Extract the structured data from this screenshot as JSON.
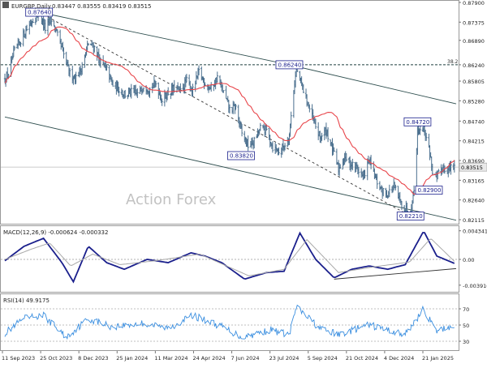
{
  "header": {
    "symbol": "EURGBP,Daily",
    "ohlc": "0.83447 0.83555 0.83419 0.83515"
  },
  "watermark": "Action Forex",
  "colors": {
    "bar": "#4a6f8e",
    "ma": "#e8454a",
    "macd": "#1a1f8c",
    "macd_signal": "#a9a9a9",
    "rsi": "#3b8fe0",
    "channel": "#2f4f4f",
    "fib": "#1e3f3f",
    "label_border": "#1a1f8c",
    "price_highlight": "#e9e9e9"
  },
  "chart_data": [
    {
      "type": "ohlc",
      "panel": "price",
      "title": "EURGBP,Daily",
      "ylim": [
        0.8205,
        0.879
      ],
      "y_ticks": [
        "0.87900",
        "0.87375",
        "0.86890",
        "0.86240",
        "0.85805",
        "0.85280",
        "0.84740",
        "0.84215",
        "0.83690",
        "0.83165",
        "0.82640",
        "0.82115"
      ],
      "current_price": "0.83515",
      "fib_level": {
        "label": "38.2",
        "value": "0.86240"
      },
      "annotations": [
        {
          "text": "0.87640",
          "x": "2023-10-20",
          "y": 0.8764
        },
        {
          "text": "0.86240",
          "x": "2024-07-31",
          "y": 0.8624
        },
        {
          "text": "0.83820",
          "x": "2024-06-06",
          "y": 0.8382
        },
        {
          "text": "0.84720",
          "x": "2024-12-24",
          "y": 0.8472
        },
        {
          "text": "0.82900",
          "x": "2025-01-06",
          "y": 0.829
        },
        {
          "text": "0.82210",
          "x": "2024-12-16",
          "y": 0.8221
        }
      ],
      "channel_lines": [
        {
          "name": "upper",
          "points": [
            [
              "2023-10-20",
              0.8764
            ],
            [
              "2024-07-31",
              0.8624
            ],
            [
              "2025-02-06",
              0.852
            ]
          ]
        },
        {
          "name": "lower",
          "points": [
            [
              "2023-09-11",
              0.8485
            ],
            [
              "2025-02-06",
              0.821
            ]
          ]
        }
      ],
      "dashed_trendline": [
        [
          "2023-10-20",
          0.8764
        ],
        [
          "2024-12-16",
          0.8221
        ]
      ],
      "series": [
        {
          "kind": "price",
          "points": [
            [
              "2023-09-11",
              0.8585
            ],
            [
              "2023-09-15",
              0.86
            ],
            [
              "2023-09-22",
              0.866
            ],
            [
              "2023-09-29",
              0.869
            ],
            [
              "2023-10-06",
              0.872
            ],
            [
              "2023-10-13",
              0.8745
            ],
            [
              "2023-10-20",
              0.876
            ],
            [
              "2023-10-27",
              0.872
            ],
            [
              "2023-11-03",
              0.8745
            ],
            [
              "2023-11-10",
              0.87
            ],
            [
              "2023-11-17",
              0.865
            ],
            [
              "2023-11-24",
              0.86
            ],
            [
              "2023-12-01",
              0.859
            ],
            [
              "2023-12-08",
              0.862
            ],
            [
              "2023-12-15",
              0.868
            ],
            [
              "2023-12-22",
              0.867
            ],
            [
              "2023-12-29",
              0.863
            ],
            [
              "2024-01-05",
              0.861
            ],
            [
              "2024-01-12",
              0.857
            ],
            [
              "2024-01-19",
              0.856
            ],
            [
              "2024-01-26",
              0.8545
            ],
            [
              "2024-02-02",
              0.855
            ],
            [
              "2024-02-09",
              0.8545
            ],
            [
              "2024-02-16",
              0.857
            ],
            [
              "2024-02-23",
              0.856
            ],
            [
              "2024-03-01",
              0.8575
            ],
            [
              "2024-03-08",
              0.853
            ],
            [
              "2024-03-15",
              0.855
            ],
            [
              "2024-03-22",
              0.856
            ],
            [
              "2024-03-29",
              0.8555
            ],
            [
              "2024-04-05",
              0.858
            ],
            [
              "2024-04-12",
              0.8555
            ],
            [
              "2024-04-19",
              0.8605
            ],
            [
              "2024-04-26",
              0.8575
            ],
            [
              "2024-05-03",
              0.856
            ],
            [
              "2024-05-10",
              0.859
            ],
            [
              "2024-05-17",
              0.855
            ],
            [
              "2024-05-24",
              0.8505
            ],
            [
              "2024-05-31",
              0.851
            ],
            [
              "2024-06-07",
              0.844
            ],
            [
              "2024-06-14",
              0.841
            ],
            [
              "2024-06-21",
              0.842
            ],
            [
              "2024-06-28",
              0.8455
            ],
            [
              "2024-07-05",
              0.845
            ],
            [
              "2024-07-12",
              0.8405
            ],
            [
              "2024-07-19",
              0.8395
            ],
            [
              "2024-07-26",
              0.841
            ],
            [
              "2024-07-31",
              0.844
            ],
            [
              "2024-08-05",
              0.856
            ],
            [
              "2024-08-08",
              0.861
            ],
            [
              "2024-08-14",
              0.857
            ],
            [
              "2024-08-21",
              0.852
            ],
            [
              "2024-08-28",
              0.847
            ],
            [
              "2024-09-04",
              0.843
            ],
            [
              "2024-09-11",
              0.845
            ],
            [
              "2024-09-18",
              0.84
            ],
            [
              "2024-09-25",
              0.8345
            ],
            [
              "2024-10-02",
              0.838
            ],
            [
              "2024-10-09",
              0.836
            ],
            [
              "2024-10-16",
              0.835
            ],
            [
              "2024-10-23",
              0.8325
            ],
            [
              "2024-10-30",
              0.837
            ],
            [
              "2024-11-06",
              0.832
            ],
            [
              "2024-11-13",
              0.829
            ],
            [
              "2024-11-20",
              0.828
            ],
            [
              "2024-11-27",
              0.83
            ],
            [
              "2024-12-04",
              0.826
            ],
            [
              "2024-12-10",
              0.824
            ],
            [
              "2024-12-16",
              0.824
            ],
            [
              "2024-12-20",
              0.829
            ],
            [
              "2024-12-24",
              0.845
            ],
            [
              "2024-12-31",
              0.846
            ],
            [
              "2025-01-07",
              0.839
            ],
            [
              "2025-01-10",
              0.834
            ],
            [
              "2025-01-14",
              0.832
            ],
            [
              "2025-01-21",
              0.835
            ],
            [
              "2025-01-28",
              0.8345
            ],
            [
              "2025-02-04",
              0.8352
            ]
          ]
        }
      ]
    },
    {
      "type": "line",
      "panel": "macd",
      "title": "MACD(12,26,9) -0.000624 -0.000332",
      "ylim": [
        -0.0048,
        0.0048
      ],
      "y_ticks": [
        "0.004341",
        "0.00",
        "-0.003916"
      ],
      "series": [
        {
          "kind": "macd",
          "points": [
            [
              "2023-09-11",
              -0.0002
            ],
            [
              "2023-10-03",
              0.002
            ],
            [
              "2023-10-25",
              0.0032
            ],
            [
              "2023-11-15",
              -0.0005
            ],
            [
              "2023-11-28",
              -0.0034
            ],
            [
              "2023-12-15",
              0.002
            ],
            [
              "2024-01-05",
              -0.0005
            ],
            [
              "2024-01-25",
              -0.0015
            ],
            [
              "2024-02-20",
              0.0
            ],
            [
              "2024-03-15",
              -0.0005
            ],
            [
              "2024-04-10",
              0.001
            ],
            [
              "2024-04-26",
              0.0005
            ],
            [
              "2024-05-15",
              -0.0005
            ],
            [
              "2024-06-10",
              -0.003
            ],
            [
              "2024-07-05",
              -0.002
            ],
            [
              "2024-07-25",
              -0.0018
            ],
            [
              "2024-08-12",
              0.004
            ],
            [
              "2024-08-30",
              0.0
            ],
            [
              "2024-09-20",
              -0.0028
            ],
            [
              "2024-10-10",
              -0.0015
            ],
            [
              "2024-10-30",
              -0.001
            ],
            [
              "2024-11-20",
              -0.0015
            ],
            [
              "2024-12-10",
              -0.0008
            ],
            [
              "2024-12-31",
              0.0043
            ],
            [
              "2025-01-15",
              0.0005
            ],
            [
              "2025-02-04",
              -0.0006
            ]
          ]
        },
        {
          "kind": "signal",
          "points": [
            [
              "2023-09-11",
              0.0
            ],
            [
              "2023-10-10",
              0.0015
            ],
            [
              "2023-11-01",
              0.0025
            ],
            [
              "2023-11-25",
              -0.001
            ],
            [
              "2023-12-20",
              0.0008
            ],
            [
              "2024-01-20",
              -0.0008
            ],
            [
              "2024-03-01",
              -0.0002
            ],
            [
              "2024-04-20",
              0.0008
            ],
            [
              "2024-06-15",
              -0.0025
            ],
            [
              "2024-07-25",
              -0.0015
            ],
            [
              "2024-08-20",
              0.003
            ],
            [
              "2024-09-25",
              -0.002
            ],
            [
              "2024-11-01",
              -0.0012
            ],
            [
              "2024-12-15",
              -0.0004
            ],
            [
              "2025-01-08",
              0.0032
            ],
            [
              "2025-02-04",
              -0.0003
            ]
          ]
        }
      ],
      "trendline": [
        [
          "2024-09-20",
          -0.003
        ],
        [
          "2025-02-06",
          -0.0014
        ]
      ]
    },
    {
      "type": "line",
      "panel": "rsi",
      "title": "RSI(14) 49.9175",
      "ylim": [
        20,
        85
      ],
      "y_ticks": [
        "70",
        "50",
        "30"
      ],
      "series": [
        {
          "kind": "rsi",
          "points": [
            [
              "2023-09-11",
              40
            ],
            [
              "2023-10-03",
              58
            ],
            [
              "2023-10-25",
              62
            ],
            [
              "2023-11-20",
              35
            ],
            [
              "2023-12-15",
              58
            ],
            [
              "2024-01-10",
              48
            ],
            [
              "2024-02-15",
              52
            ],
            [
              "2024-03-15",
              46
            ],
            [
              "2024-04-12",
              62
            ],
            [
              "2024-05-15",
              48
            ],
            [
              "2024-06-07",
              35
            ],
            [
              "2024-07-10",
              44
            ],
            [
              "2024-07-31",
              38
            ],
            [
              "2024-08-08",
              72
            ],
            [
              "2024-09-05",
              45
            ],
            [
              "2024-09-25",
              38
            ],
            [
              "2024-10-30",
              50
            ],
            [
              "2024-12-10",
              38
            ],
            [
              "2024-12-31",
              70
            ],
            [
              "2025-01-14",
              42
            ],
            [
              "2025-02-04",
              50
            ]
          ]
        }
      ]
    }
  ],
  "x_axis": {
    "labels": [
      "11 Sep 2023",
      "25 Oct 2023",
      "8 Dec 2023",
      "25 Jan 2024",
      "11 Mar 2024",
      "24 Apr 2024",
      "7 Jun 2024",
      "23 Jul 2024",
      "5 Sep 2024",
      "21 Oct 2024",
      "4 Dec 2024",
      "21 Jan 2025"
    ]
  }
}
